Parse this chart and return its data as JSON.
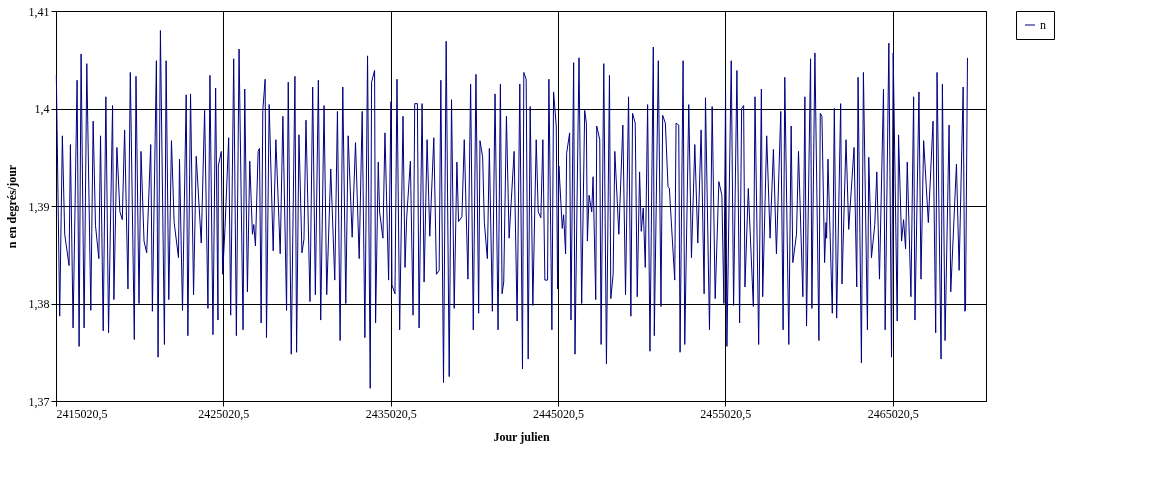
{
  "chart_data": {
    "type": "line",
    "xlabel": "Jour julien",
    "ylabel": "n en degrés/jour",
    "xlim": [
      2415020.5,
      2470600
    ],
    "ylim": [
      1.37,
      1.41
    ],
    "xticks": [
      {
        "value": 2415020.5,
        "label": "2415020,5"
      },
      {
        "value": 2425020.5,
        "label": "2425020,5"
      },
      {
        "value": 2435020.5,
        "label": "2435020,5"
      },
      {
        "value": 2445020.5,
        "label": "2445020,5"
      },
      {
        "value": 2455020.5,
        "label": "2455020,5"
      },
      {
        "value": 2465020.5,
        "label": "2465020,5"
      }
    ],
    "yticks": [
      {
        "value": 1.37,
        "label": "1,37"
      },
      {
        "value": 1.38,
        "label": "1,38"
      },
      {
        "value": 1.39,
        "label": "1,39"
      },
      {
        "value": 1.4,
        "label": "1,4"
      },
      {
        "value": 1.41,
        "label": "1,41"
      }
    ],
    "grid": true,
    "legend": "right",
    "line_style": "solid",
    "series": [
      {
        "name": "n",
        "color": "#000080",
        "x": [
          2415041,
          2415241,
          2415401,
          2415541,
          2415801,
          2415881,
          2416041,
          2416281,
          2416401,
          2416521,
          2416701,
          2416861,
          2417101,
          2417241,
          2417381,
          2417581,
          2417681,
          2417841,
          2418001,
          2418161,
          2418401,
          2418481,
          2418661,
          2418841,
          2418981,
          2419121,
          2419321,
          2419461,
          2419701,
          2419801,
          2419981,
          2420101,
          2420281,
          2420441,
          2420681,
          2420781,
          2421021,
          2421121,
          2421261,
          2421501,
          2421601,
          2421761,
          2421921,
          2422081,
          2422341,
          2422401,
          2422581,
          2422801,
          2422901,
          2423061,
          2423241,
          2423401,
          2423701,
          2423901,
          2424101,
          2424221,
          2424401,
          2424561,
          2424701,
          2424720,
          2424900,
          2424980,
          2425120,
          2425340,
          2425460,
          2425640,
          2425800,
          2425960,
          2426200,
          2426300,
          2426460,
          2426600,
          2426760,
          2426840,
          2426940,
          2427100,
          2427180,
          2427280,
          2427380,
          2427520,
          2427600,
          2427760,
          2428000,
          2428160,
          2428420,
          2428580,
          2428800,
          2428900,
          2429080,
          2429300,
          2429400,
          2429540,
          2429720,
          2429840,
          2429960,
          2430200,
          2430360,
          2430520,
          2430700,
          2430840,
          2431040,
          2431200,
          2431440,
          2431680,
          2431840,
          2432000,
          2432160,
          2432340,
          2432480,
          2432720,
          2432920,
          2433140,
          2433320,
          2433480,
          2433640,
          2433800,
          2433880,
          2434060,
          2434120,
          2434280,
          2434359,
          2434559,
          2434679,
          2434899,
          2435039,
          2435099,
          2435279,
          2435399,
          2435559,
          2435759,
          2435879,
          2435979,
          2436199,
          2436359,
          2436459,
          2436619,
          2436719,
          2436899,
          2437019,
          2437199,
          2437359,
          2437599,
          2437759,
          2437919,
          2438019,
          2438179,
          2438339,
          2438519,
          2438659,
          2438819,
          2438979,
          2439079,
          2439279,
          2439419,
          2439639,
          2439799,
          2439959,
          2440119,
          2440279,
          2440359,
          2440519,
          2440619,
          2440799,
          2440919,
          2441099,
          2441259,
          2441439,
          2441579,
          2441679,
          2441779,
          2441939,
          2442099,
          2442399,
          2442579,
          2442739,
          2442899,
          2442979,
          2443119,
          2443239,
          2443359,
          2443519,
          2443719,
          2443839,
          2443997,
          2444117,
          2444237,
          2444397,
          2444477,
          2444657,
          2444757,
          2444917,
          2444997,
          2445077,
          2445277,
          2445357,
          2445477,
          2445537,
          2445717,
          2445797,
          2445957,
          2446037,
          2446277,
          2446437,
          2446617,
          2446717,
          2446777,
          2446877,
          2447037,
          2447117,
          2447277,
          2447337,
          2447517,
          2447597,
          2447757,
          2447917,
          2448097,
          2448177,
          2448317,
          2448417,
          2448657,
          2448897,
          2449057,
          2449237,
          2449377,
          2449477,
          2449637,
          2449757,
          2449897,
          2449997,
          2450117,
          2450237,
          2450377,
          2450517,
          2450717,
          2450777,
          2451017,
          2451177,
          2451277,
          2451437,
          2451597,
          2451677,
          2451997,
          2452077,
          2452237,
          2452317,
          2452497,
          2452597,
          2452837,
          2452997,
          2453197,
          2453377,
          2453575,
          2453755,
          2453835,
          2454075,
          2454235,
          2454415,
          2454635,
          2454815,
          2454935,
          2455035,
          2455115,
          2455375,
          2455515,
          2455715,
          2455875,
          2455995,
          2456115,
          2456195,
          2456395,
          2456695,
          2456795,
          2457015,
          2457175,
          2457255,
          2457495,
          2457695,
          2457895,
          2458075,
          2458335,
          2458475,
          2458575,
          2458815,
          2458955,
          2459055,
          2459275,
          2459395,
          2459655,
          2459775,
          2459875,
          2460115,
          2460195,
          2460375,
          2460615,
          2460695,
          2460795,
          2460955,
          2461035,
          2461075,
          2461155,
          2461415,
          2461535,
          2461675,
          2461915,
          2461995,
          2462235,
          2462395,
          2462715,
          2462875,
          2462955,
          2463154,
          2463274,
          2463514,
          2463594,
          2463754,
          2463954,
          2464074,
          2464234,
          2464474,
          2464574,
          2464794,
          2464954,
          2465054,
          2465294,
          2465374,
          2465554,
          2465674,
          2465794,
          2465894,
          2466114,
          2466274,
          2466354,
          2466594,
          2466714,
          2466874,
          2467154,
          2467434,
          2467594,
          2467674,
          2467914,
          2467994,
          2468154,
          2468394,
          2468494,
          2468834,
          2468994,
          2469234,
          2469334,
          2469374,
          2469494
        ],
        "values": [
          1.4034,
          1.3787,
          1.3972,
          1.3871,
          1.3839,
          1.3963,
          1.3775,
          1.4029,
          1.3756,
          1.4056,
          1.3775,
          1.4046,
          1.3793,
          1.3987,
          1.388,
          1.3846,
          1.3972,
          1.3772,
          1.4012,
          1.377,
          1.4003,
          1.3804,
          1.396,
          1.3894,
          1.3886,
          1.3978,
          1.3815,
          1.4037,
          1.3763,
          1.4033,
          1.38,
          1.3956,
          1.3864,
          1.3852,
          1.3963,
          1.3792,
          1.4049,
          1.3745,
          1.408,
          1.3758,
          1.4049,
          1.3804,
          1.3967,
          1.3883,
          1.3847,
          1.3948,
          1.3793,
          1.4014,
          1.3767,
          1.4015,
          1.3809,
          1.3951,
          1.3862,
          1.3998,
          1.3795,
          1.4034,
          1.3768,
          1.4021,
          1.3783,
          1.3941,
          1.3956,
          1.383,
          1.3877,
          1.397,
          1.3788,
          1.4051,
          1.3767,
          1.4061,
          1.3773,
          1.402,
          1.3812,
          1.3946,
          1.3871,
          1.3881,
          1.3859,
          1.3956,
          1.3959,
          1.378,
          1.3998,
          1.403,
          1.3765,
          1.4004,
          1.3854,
          1.3968,
          1.3851,
          1.3992,
          1.3793,
          1.4027,
          1.3748,
          1.4033,
          1.375,
          1.3973,
          1.3852,
          1.3866,
          1.3988,
          1.3802,
          1.4022,
          1.3809,
          1.4029,
          1.3783,
          1.4003,
          1.3809,
          1.3938,
          1.3824,
          1.3997,
          1.3762,
          1.4022,
          1.38,
          1.3972,
          1.3868,
          1.3965,
          1.3846,
          1.3997,
          1.3765,
          1.4054,
          1.3713,
          1.4027,
          1.4039,
          1.378,
          1.3945,
          1.3894,
          1.3867,
          1.3975,
          1.3824,
          1.4007,
          1.3819,
          1.381,
          1.403,
          1.3773,
          1.3992,
          1.3837,
          1.3888,
          1.3946,
          1.3788,
          1.4005,
          1.4005,
          1.3775,
          1.4005,
          1.3822,
          1.3968,
          1.3869,
          1.397,
          1.383,
          1.3834,
          1.4029,
          1.3719,
          1.4069,
          1.3725,
          1.4009,
          1.3795,
          1.3945,
          1.3884,
          1.3889,
          1.3968,
          1.3825,
          1.4025,
          1.3773,
          1.4035,
          1.379,
          1.3967,
          1.395,
          1.3883,
          1.3846,
          1.3959,
          1.3792,
          1.4015,
          1.3773,
          1.4025,
          1.381,
          1.3822,
          1.3992,
          1.3867,
          1.3956,
          1.3782,
          1.4025,
          1.3733,
          1.4037,
          1.403,
          1.3743,
          1.4002,
          1.3798,
          1.3968,
          1.3894,
          1.3888,
          1.3968,
          1.3824,
          1.3824,
          1.403,
          1.3773,
          1.4017,
          1.3982,
          1.3815,
          1.3941,
          1.3877,
          1.3891,
          1.3851,
          1.3954,
          1.3975,
          1.3783,
          1.4047,
          1.3748,
          1.4052,
          1.38,
          1.3998,
          1.3985,
          1.3864,
          1.3911,
          1.3894,
          1.393,
          1.3804,
          1.3982,
          1.3968,
          1.3758,
          1.4046,
          1.3738,
          1.4034,
          1.3805,
          1.383,
          1.3956,
          1.3871,
          1.3983,
          1.3809,
          1.4012,
          1.3787,
          1.3995,
          1.3985,
          1.3807,
          1.3935,
          1.3874,
          1.3898,
          1.3837,
          1.4004,
          1.3751,
          1.4063,
          1.3767,
          1.4049,
          1.3797,
          1.3993,
          1.3985,
          1.392,
          1.3918,
          1.3824,
          1.3985,
          1.3983,
          1.375,
          1.4049,
          1.3758,
          1.4004,
          1.3847,
          1.3963,
          1.3862,
          1.3978,
          1.381,
          1.4011,
          1.3773,
          1.4002,
          1.3805,
          1.3925,
          1.3911,
          1.38,
          1.4017,
          1.3756,
          1.4049,
          1.3798,
          1.4039,
          1.378,
          1.4,
          1.4003,
          1.3817,
          1.3918,
          1.3797,
          1.4012,
          1.3758,
          1.402,
          1.3807,
          1.3972,
          1.3867,
          1.3958,
          1.3851,
          1.3997,
          1.3773,
          1.4032,
          1.3758,
          1.3982,
          1.3842,
          1.3871,
          1.3956,
          1.3807,
          1.4012,
          1.3777,
          1.4051,
          1.3795,
          1.4057,
          1.3762,
          1.3995,
          1.3992,
          1.3842,
          1.3883,
          1.3867,
          1.3948,
          1.379,
          1.4,
          1.3785,
          1.4005,
          1.382,
          1.3968,
          1.3876,
          1.396,
          1.3817,
          1.4032,
          1.3739,
          1.4037,
          1.3773,
          1.395,
          1.3847,
          1.3881,
          1.3935,
          1.3825,
          1.402,
          1.3773,
          1.4067,
          1.3745,
          1.4057,
          1.3782,
          1.3973,
          1.3864,
          1.3886,
          1.3856,
          1.3945,
          1.3807,
          1.4012,
          1.3783,
          1.4017,
          1.3825,
          1.3967,
          1.3883,
          1.3987,
          1.377,
          1.4037,
          1.3743,
          1.4025,
          1.3762,
          1.3983,
          1.3812,
          1.3943,
          1.3834,
          1.4022,
          1.3792,
          1.3793,
          1.4052
        ]
      }
    ]
  }
}
